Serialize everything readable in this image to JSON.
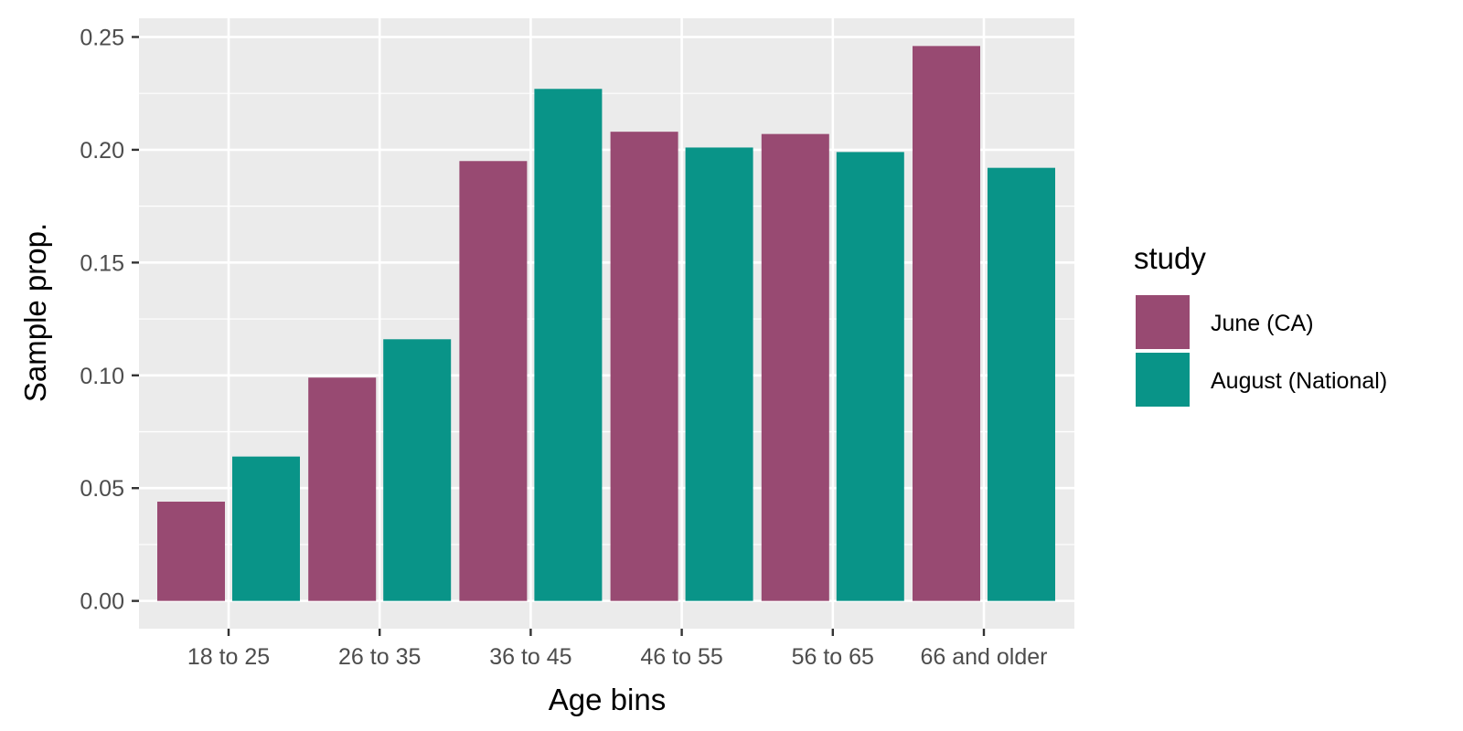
{
  "chart_data": {
    "type": "bar",
    "title": "",
    "xlabel": "Age bins",
    "ylabel": "Sample prop.",
    "categories": [
      "18 to 25",
      "26 to 35",
      "36 to 45",
      "46 to 55",
      "56 to 65",
      "66 and older"
    ],
    "series": [
      {
        "name": "June (CA)",
        "color": "#984A72",
        "values": [
          0.044,
          0.099,
          0.195,
          0.208,
          0.207,
          0.246
        ]
      },
      {
        "name": "August (National)",
        "color": "#099488",
        "values": [
          0.064,
          0.116,
          0.227,
          0.201,
          0.199,
          0.192
        ]
      }
    ],
    "ylim": [
      -0.0123,
      0.2583
    ],
    "yticks": [
      0.0,
      0.05,
      0.1,
      0.15,
      0.2,
      0.25
    ],
    "ytick_labels": [
      "0.00",
      "0.05",
      "0.10",
      "0.15",
      "0.20",
      "0.25"
    ],
    "grid": true,
    "panel_background": "#EBEBEB",
    "legend": {
      "title": "study",
      "placement": "right"
    }
  }
}
